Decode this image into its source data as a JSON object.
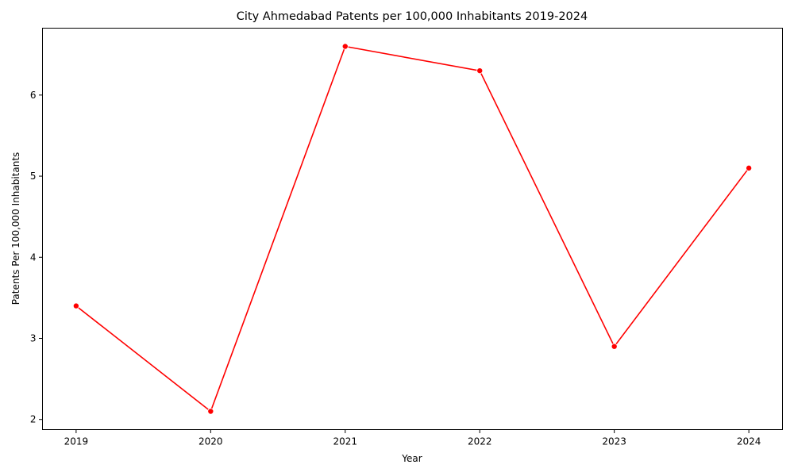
{
  "chart_data": {
    "type": "line",
    "title": "City Ahmedabad Patents per 100,000 Inhabitants 2019-2024",
    "xlabel": "Year",
    "ylabel": "Patents Per 100,000 Inhabitants",
    "x": [
      2019,
      2020,
      2021,
      2022,
      2023,
      2024
    ],
    "y": [
      3.4,
      2.1,
      6.6,
      6.3,
      2.9,
      5.1
    ],
    "xticks": [
      "2019",
      "2020",
      "2021",
      "2022",
      "2023",
      "2024"
    ],
    "yticks": [
      2,
      3,
      4,
      5,
      6
    ],
    "xlim": [
      2018.75,
      2024.25
    ],
    "ylim": [
      1.875,
      6.825
    ],
    "grid": false,
    "marker": "circle",
    "color": "#ff0000"
  }
}
